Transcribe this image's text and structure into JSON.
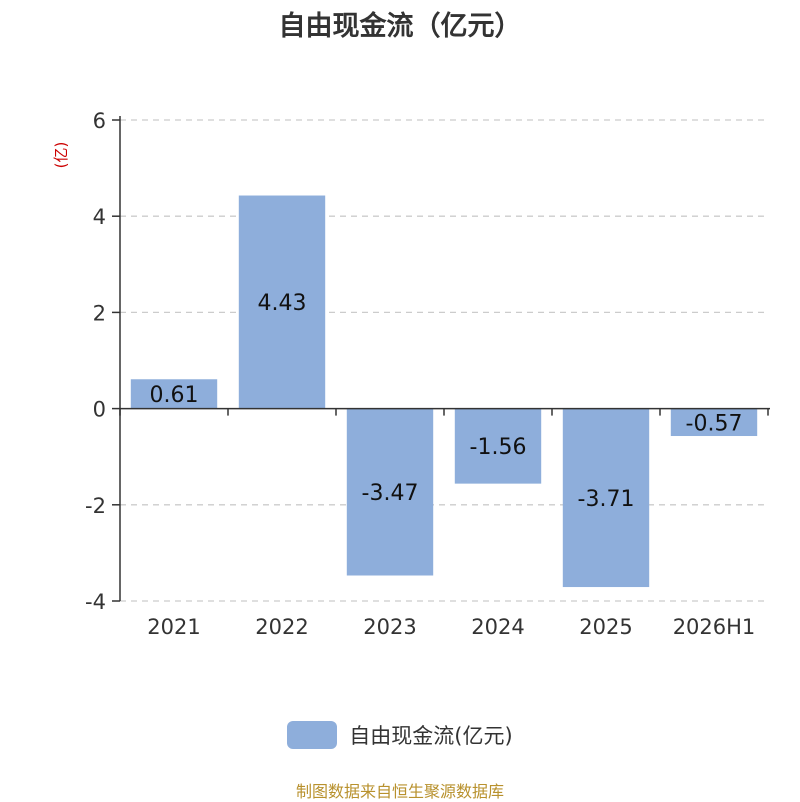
{
  "chart_data": {
    "type": "bar",
    "title": "自由现金流（亿元）",
    "unit_label": "(亿)",
    "categories": [
      "2021",
      "2022",
      "2023",
      "2024",
      "2025",
      "2026H1"
    ],
    "series": [
      {
        "name": "自由现金流(亿元)",
        "values": [
          0.61,
          4.43,
          -3.47,
          -1.56,
          -3.71,
          -0.57
        ]
      }
    ],
    "data_labels": [
      "0.61",
      "4.43",
      "-3.47",
      "-1.56",
      "-3.71",
      "-0.57"
    ],
    "y_ticks": [
      {
        "value": -4,
        "label": "-4"
      },
      {
        "value": -2,
        "label": "-2"
      },
      {
        "value": 0,
        "label": "0"
      },
      {
        "value": 2,
        "label": "2"
      },
      {
        "value": 4,
        "label": "4"
      },
      {
        "value": 6,
        "label": "6"
      }
    ],
    "ylim": [
      -4,
      6
    ],
    "grid": true,
    "legend_position": "bottom",
    "bar_color": "#8eaedb",
    "unit_label_color": "#cc0000",
    "source_color": "#b8912d"
  },
  "source_text": "制图数据来自恒生聚源数据库"
}
